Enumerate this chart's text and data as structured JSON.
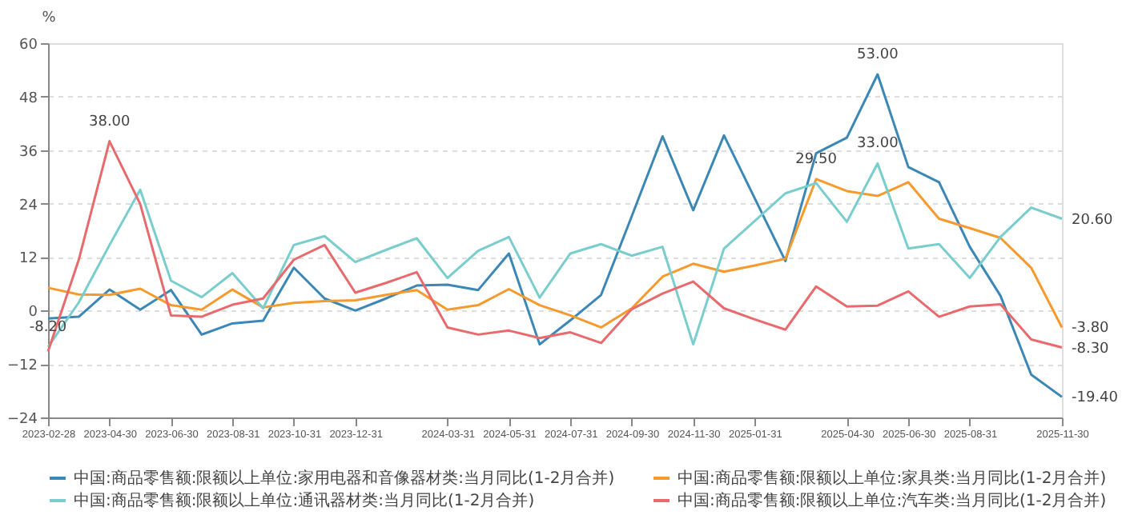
{
  "chart_data": {
    "type": "line",
    "ylabel": "%",
    "categories": [
      "2023-02-28",
      null,
      "2023-04-30",
      null,
      "2023-06-30",
      null,
      "2023-08-31",
      null,
      "2023-10-31",
      null,
      "2023-12-31",
      null,
      null,
      "2024-03-31",
      null,
      "2024-05-31",
      null,
      "2024-07-31",
      null,
      "2024-09-30",
      null,
      "2024-11-30",
      null,
      "2025-01-31",
      null,
      null,
      "2025-04-30",
      null,
      "2025-06-30",
      null,
      "2025-08-31",
      null,
      null,
      "2025-11-30"
    ],
    "series": [
      {
        "name": "中国:商品零售额:限额以上单位:家用电器和音像器材类:当月同比(1-2月合并)",
        "color": "#3b87b5",
        "values": [
          -1.8,
          -1.4,
          4.7,
          0.2,
          4.6,
          -5.4,
          -2.9,
          -2.3,
          9.6,
          2.7,
          0,
          2.7,
          5.6,
          5.8,
          4.6,
          12.8,
          -7.6,
          -2.2,
          3.5,
          21.2,
          39.1,
          22.5,
          39.3,
          25.2,
          11.1,
          35.3,
          38.8,
          53.0,
          32.2,
          28.8,
          14.3,
          3.3,
          -14.4,
          -19.4
        ],
        "value_labels": [
          null,
          null,
          null,
          null,
          null,
          null,
          null,
          null,
          null,
          null,
          null,
          null,
          null,
          null,
          null,
          null,
          null,
          null,
          null,
          null,
          null,
          null,
          null,
          null,
          null,
          null,
          null,
          "53.00",
          null,
          null,
          null,
          null,
          null,
          "-19.40"
        ]
      },
      {
        "name": "中国:商品零售额:限额以上单位:家具类:当月同比(1-2月合并)",
        "color": "#f79a2e",
        "values": [
          5.1,
          3.6,
          3.5,
          4.9,
          1.2,
          0.2,
          4.7,
          0.7,
          1.7,
          2.1,
          2.3,
          3.5,
          4.6,
          0.2,
          1.2,
          4.8,
          1.2,
          -1.1,
          -3.8,
          0.5,
          7.6,
          10.5,
          8.7,
          10.1,
          11.6,
          29.5,
          26.8,
          25.7,
          28.8,
          20.6,
          18.5,
          16.3,
          9.6,
          -3.8
        ],
        "value_labels": [
          null,
          null,
          null,
          null,
          null,
          null,
          null,
          null,
          null,
          null,
          null,
          null,
          null,
          null,
          null,
          null,
          null,
          null,
          null,
          null,
          null,
          null,
          null,
          null,
          null,
          "29.50",
          null,
          null,
          null,
          null,
          null,
          null,
          null,
          "-3.80"
        ]
      },
      {
        "name": "中国:商品零售额:限额以上单位:通讯器材类:当月同比(1-2月合并)",
        "color": "#79cdcd",
        "values": [
          -8.2,
          1.8,
          14.7,
          27.1,
          6.7,
          3.0,
          8.4,
          0.5,
          14.7,
          16.7,
          10.9,
          13.6,
          16.2,
          7.3,
          13.4,
          16.5,
          2.9,
          12.8,
          14.9,
          12.3,
          14.3,
          -7.6,
          13.9,
          20.1,
          26.3,
          28.6,
          19.9,
          33.0,
          13.9,
          14.9,
          7.3,
          16.5,
          23.1,
          20.6
        ],
        "value_labels": [
          "-8.20",
          null,
          null,
          null,
          null,
          null,
          null,
          null,
          null,
          null,
          null,
          null,
          null,
          null,
          null,
          null,
          null,
          null,
          null,
          null,
          null,
          null,
          null,
          null,
          null,
          null,
          null,
          "33.00",
          null,
          null,
          null,
          null,
          null,
          "20.60"
        ]
      },
      {
        "name": "中国:商品零售额:限额以上单位:汽车类:当月同比(1-2月合并)",
        "color": "#e86a6c",
        "values": [
          -9.2,
          11.4,
          38.0,
          23.9,
          -1.1,
          -1.4,
          1.3,
          2.7,
          11.4,
          14.7,
          4.0,
          6.2,
          8.6,
          -3.8,
          -5.4,
          -4.5,
          -6.2,
          -4.9,
          -7.3,
          0.3,
          3.8,
          6.5,
          0.5,
          -2.0,
          -4.3,
          5.4,
          0.9,
          1.1,
          4.3,
          -1.4,
          0.9,
          1.4,
          -6.5,
          -8.3
        ],
        "value_labels": [
          null,
          null,
          "38.00",
          null,
          null,
          null,
          null,
          null,
          null,
          null,
          null,
          null,
          null,
          null,
          null,
          null,
          null,
          null,
          null,
          null,
          null,
          null,
          null,
          null,
          null,
          null,
          null,
          null,
          null,
          null,
          null,
          null,
          null,
          "-8.30"
        ]
      }
    ],
    "ylim": [
      -24,
      60
    ],
    "yticks": [
      -24,
      -12,
      0,
      12,
      24,
      36,
      48,
      60
    ],
    "grid": "y",
    "legend": "bottom",
    "marker": "none",
    "line_style": "solid"
  }
}
